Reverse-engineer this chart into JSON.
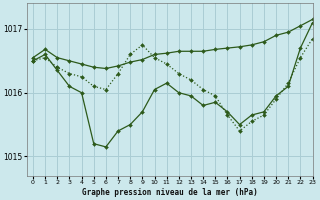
{
  "title": "Graphe pression niveau de la mer (hPa)",
  "background_color": "#cce8ec",
  "grid_color": "#aacdd4",
  "line_color": "#2d5a1b",
  "xlim": [
    -0.5,
    23
  ],
  "ylim": [
    1014.7,
    1017.4
  ],
  "yticks": [
    1015,
    1016,
    1017
  ],
  "xticks": [
    0,
    1,
    2,
    3,
    4,
    5,
    6,
    7,
    8,
    9,
    10,
    11,
    12,
    13,
    14,
    15,
    16,
    17,
    18,
    19,
    20,
    21,
    22,
    23
  ],
  "series": [
    {
      "x": [
        0,
        1,
        2,
        3,
        4,
        5,
        6,
        7,
        8,
        9,
        10,
        11,
        12,
        13,
        14,
        15,
        16,
        17,
        18,
        19,
        20,
        21,
        22,
        23
      ],
      "y": [
        1016.55,
        1016.68,
        1016.55,
        1016.5,
        1016.45,
        1016.4,
        1016.38,
        1016.42,
        1016.48,
        1016.52,
        1016.6,
        1016.62,
        1016.65,
        1016.65,
        1016.65,
        1016.68,
        1016.7,
        1016.72,
        1016.75,
        1016.8,
        1016.9,
        1016.95,
        1017.05,
        1017.15
      ],
      "style": "solid",
      "linewidth": 0.9
    },
    {
      "x": [
        0,
        1,
        2,
        3,
        4,
        5,
        6,
        7,
        8,
        9,
        10,
        11,
        12,
        13,
        14,
        15,
        16,
        17,
        18,
        19,
        20,
        21,
        22,
        23
      ],
      "y": [
        1016.5,
        1016.6,
        1016.35,
        1016.1,
        1016.0,
        1015.2,
        1015.15,
        1015.4,
        1015.5,
        1015.7,
        1016.05,
        1016.15,
        1016.0,
        1015.95,
        1015.8,
        1015.85,
        1015.7,
        1015.5,
        1015.65,
        1015.7,
        1015.95,
        1016.1,
        1016.7,
        1017.1
      ],
      "style": "solid",
      "linewidth": 0.9
    },
    {
      "x": [
        0,
        1,
        2,
        3,
        4,
        5,
        6,
        7,
        8,
        9,
        10,
        11,
        12,
        13,
        14,
        15,
        16,
        17,
        18,
        19,
        20,
        21,
        22,
        23
      ],
      "y": [
        1016.5,
        1016.55,
        1016.4,
        1016.3,
        1016.25,
        1016.1,
        1016.05,
        1016.3,
        1016.6,
        1016.75,
        1016.55,
        1016.45,
        1016.3,
        1016.2,
        1016.05,
        1015.95,
        1015.65,
        1015.4,
        1015.55,
        1015.65,
        1015.9,
        1016.15,
        1016.55,
        1016.85
      ],
      "style": "dotted",
      "linewidth": 0.9
    }
  ]
}
